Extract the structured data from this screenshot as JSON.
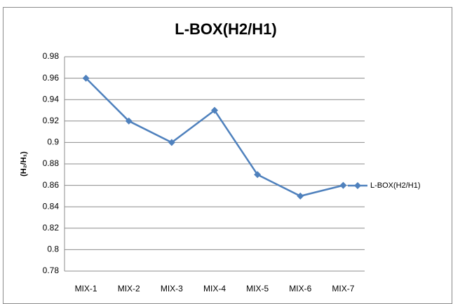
{
  "chart_data": {
    "type": "line",
    "title": "L-BOX(H2/H1)",
    "y_label": "(H₂/H₁)",
    "categories": [
      "MIX-1",
      "MIX-2",
      "MIX-3",
      "MIX-4",
      "MIX-5",
      "MIX-6",
      "MIX-7"
    ],
    "series": [
      {
        "name": "L-BOX(H2/H1)",
        "color": "#4f81bd",
        "values": [
          0.96,
          0.92,
          0.9,
          0.93,
          0.87,
          0.85,
          0.86
        ]
      }
    ],
    "ylim": [
      0.78,
      0.98
    ],
    "yticks": [
      0.78,
      0.8,
      0.82,
      0.84,
      0.86,
      0.88,
      0.9,
      0.92,
      0.94,
      0.96,
      0.98
    ],
    "grid": true,
    "legend": "right"
  }
}
